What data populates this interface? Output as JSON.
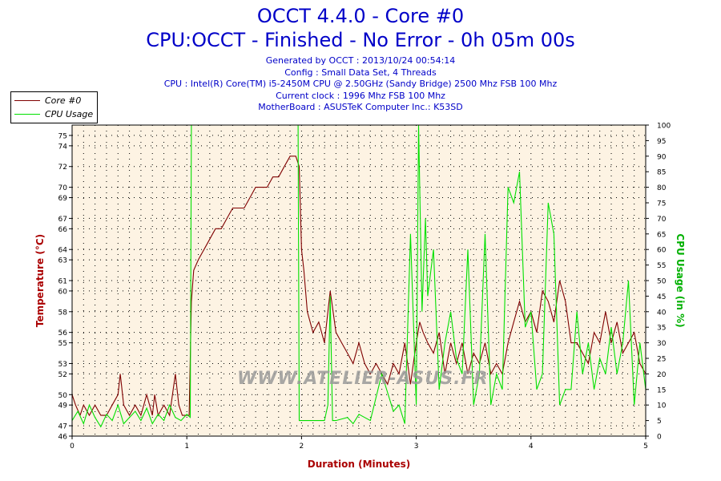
{
  "header": {
    "title": "OCCT 4.4.0 - Core #0",
    "subtitle": "CPU:OCCT - Finished - No Error - 0h 05m 00s",
    "lines": [
      "Generated by OCCT : 2013/10/24 00:54:14",
      "Config : Small Data Set, 4 Threads",
      "CPU : Intel(R) Core(TM) i5-2450M CPU @ 2.50GHz (Sandy Bridge) 2500 Mhz FSB 100 Mhz",
      "Current clock : 1996 Mhz FSB 100 Mhz",
      "MotherBoard : ASUSTeK Computer Inc.: K53SD"
    ]
  },
  "watermark": "WWW.ATELIER-ASUS.FR",
  "colors": {
    "temperature": "#7f0000",
    "cpu_usage": "#00e000",
    "title": "#0000c8",
    "plot_bg": "#fdf3e3"
  },
  "chart_data": {
    "type": "line",
    "xlabel": "Duration (Minutes)",
    "ylabel_left": "Temperature (°C)",
    "ylabel_right": "CPU Usage (in %)",
    "x_ticks": [
      "0",
      "1",
      "2",
      "3",
      "4",
      "5"
    ],
    "xlim": [
      0,
      5
    ],
    "y_left_lim": [
      46,
      76
    ],
    "y_left_ticks": [
      "46",
      "47",
      "49",
      "50",
      "52",
      "53",
      "55",
      "56",
      "58",
      "60",
      "61",
      "63",
      "64",
      "66",
      "67",
      "69",
      "70",
      "72",
      "74",
      "75"
    ],
    "y_left_tick_values": [
      46,
      47,
      49,
      50,
      52,
      53,
      55,
      56,
      58,
      60,
      61,
      63,
      64,
      66,
      67,
      69,
      70,
      72,
      74,
      75
    ],
    "y_right_lim": [
      0,
      100
    ],
    "y_right_ticks": [
      "0",
      "5",
      "10",
      "15",
      "20",
      "25",
      "30",
      "35",
      "40",
      "45",
      "50",
      "55",
      "60",
      "65",
      "70",
      "75",
      "80",
      "85",
      "90",
      "95",
      "100"
    ],
    "legend_position": "top-left",
    "grid": true,
    "series": [
      {
        "name": "Core #0",
        "axis": "left",
        "x": [
          0,
          0.03,
          0.07,
          0.1,
          0.15,
          0.2,
          0.25,
          0.3,
          0.35,
          0.4,
          0.42,
          0.45,
          0.5,
          0.55,
          0.6,
          0.65,
          0.7,
          0.72,
          0.75,
          0.8,
          0.85,
          0.9,
          0.93,
          0.96,
          1.0,
          1.02,
          1.04,
          1.06,
          1.1,
          1.15,
          1.2,
          1.25,
          1.3,
          1.35,
          1.4,
          1.45,
          1.5,
          1.55,
          1.6,
          1.65,
          1.7,
          1.75,
          1.8,
          1.85,
          1.9,
          1.95,
          1.98,
          2.0,
          2.02,
          2.05,
          2.1,
          2.15,
          2.2,
          2.25,
          2.3,
          2.35,
          2.4,
          2.45,
          2.5,
          2.55,
          2.6,
          2.65,
          2.7,
          2.75,
          2.8,
          2.85,
          2.9,
          2.95,
          3.0,
          3.03,
          3.06,
          3.1,
          3.15,
          3.2,
          3.25,
          3.3,
          3.35,
          3.4,
          3.45,
          3.5,
          3.55,
          3.6,
          3.65,
          3.7,
          3.75,
          3.8,
          3.85,
          3.9,
          3.95,
          4.0,
          4.05,
          4.1,
          4.15,
          4.2,
          4.25,
          4.3,
          4.35,
          4.4,
          4.45,
          4.5,
          4.55,
          4.6,
          4.65,
          4.7,
          4.75,
          4.8,
          4.85,
          4.9,
          4.95,
          5.0
        ],
        "y": [
          50,
          49,
          48,
          49,
          48,
          49,
          48,
          48,
          49,
          50,
          52,
          49,
          48,
          49,
          48,
          50,
          48,
          50,
          48,
          49,
          48,
          52,
          49,
          48,
          48,
          48,
          59,
          62,
          63,
          64,
          65,
          66,
          66,
          67,
          68,
          68,
          68,
          69,
          70,
          70,
          70,
          71,
          71,
          72,
          73,
          73,
          72,
          64,
          62,
          58,
          56,
          57,
          55,
          60,
          56,
          55,
          54,
          53,
          55,
          53,
          52,
          53,
          52,
          51,
          53,
          52,
          55,
          51,
          55,
          57,
          56,
          55,
          54,
          56,
          52,
          55,
          53,
          55,
          52,
          54,
          53,
          55,
          52,
          53,
          52,
          55,
          57,
          59,
          57,
          58,
          56,
          60,
          59,
          57,
          61,
          59,
          55,
          55,
          54,
          53,
          56,
          55,
          58,
          55,
          57,
          54,
          55,
          56,
          53,
          52
        ]
      },
      {
        "name": "CPU Usage",
        "axis": "right",
        "x": [
          0,
          0.05,
          0.1,
          0.15,
          0.2,
          0.25,
          0.3,
          0.35,
          0.4,
          0.45,
          0.5,
          0.55,
          0.6,
          0.65,
          0.7,
          0.75,
          0.8,
          0.85,
          0.9,
          0.95,
          1.0,
          1.03,
          1.04,
          1.5,
          1.97,
          1.98,
          2.0,
          2.1,
          2.2,
          2.23,
          2.25,
          2.27,
          2.3,
          2.4,
          2.45,
          2.5,
          2.6,
          2.7,
          2.8,
          2.85,
          2.9,
          2.95,
          3.0,
          3.02,
          3.05,
          3.08,
          3.1,
          3.15,
          3.2,
          3.25,
          3.3,
          3.35,
          3.4,
          3.45,
          3.5,
          3.55,
          3.6,
          3.65,
          3.7,
          3.75,
          3.8,
          3.85,
          3.9,
          3.95,
          4.0,
          4.05,
          4.1,
          4.15,
          4.2,
          4.25,
          4.3,
          4.35,
          4.4,
          4.45,
          4.5,
          4.55,
          4.6,
          4.65,
          4.7,
          4.75,
          4.8,
          4.85,
          4.9,
          4.95,
          5.0
        ],
        "y": [
          5,
          8,
          4,
          10,
          6,
          3,
          7,
          5,
          10,
          4,
          6,
          8,
          5,
          9,
          4,
          7,
          5,
          10,
          6,
          5,
          7,
          6,
          100,
          100,
          100,
          5,
          5,
          5,
          5,
          10,
          45,
          5,
          5,
          6,
          4,
          7,
          5,
          20,
          8,
          10,
          4,
          65,
          10,
          100,
          40,
          70,
          45,
          60,
          15,
          30,
          40,
          25,
          20,
          60,
          10,
          20,
          65,
          10,
          20,
          15,
          80,
          75,
          85,
          35,
          40,
          15,
          20,
          75,
          65,
          10,
          15,
          15,
          40,
          20,
          30,
          15,
          25,
          20,
          35,
          20,
          30,
          50,
          10,
          30,
          15
        ]
      }
    ]
  }
}
